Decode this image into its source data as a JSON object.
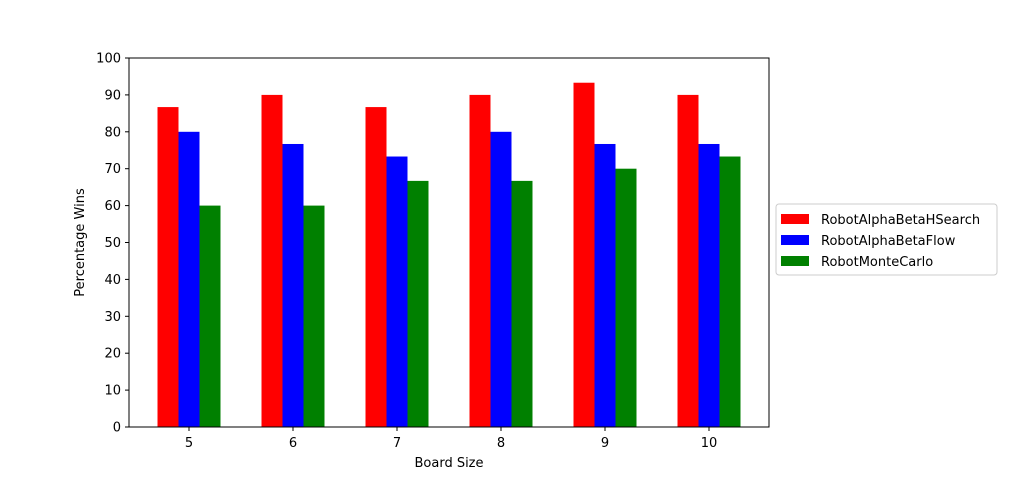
{
  "chart_data": {
    "type": "bar",
    "title": "",
    "xlabel": "Board Size",
    "ylabel": "Percentage Wins",
    "ylim": [
      0,
      100
    ],
    "yticks": [
      0,
      10,
      20,
      30,
      40,
      50,
      60,
      70,
      80,
      90,
      100
    ],
    "categories": [
      "5",
      "6",
      "7",
      "8",
      "9",
      "10"
    ],
    "grid": false,
    "legend_position": "right-outside",
    "series": [
      {
        "name": "RobotAlphaBetaHSearch",
        "color": "#ff0000",
        "values": [
          86.7,
          90.0,
          86.7,
          90.0,
          93.3,
          90.0
        ]
      },
      {
        "name": "RobotAlphaBetaFlow",
        "color": "#0000ff",
        "values": [
          80.0,
          76.7,
          73.3,
          80.0,
          76.7,
          76.7
        ]
      },
      {
        "name": "RobotMonteCarlo",
        "color": "#008000",
        "values": [
          60.0,
          60.0,
          66.7,
          66.7,
          70.0,
          73.3
        ]
      }
    ]
  }
}
